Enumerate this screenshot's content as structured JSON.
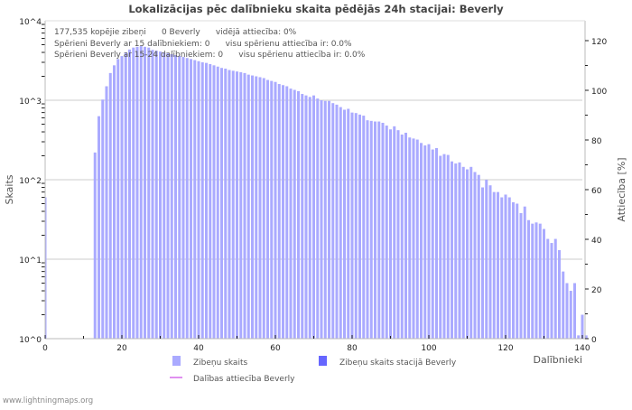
{
  "chart_data": {
    "type": "bar",
    "title": "Lokalizācijas pēc dalībnieku skaita pēdējās 24h stacijai: Beverly",
    "xlabel": "Dalībnieki",
    "ylabel": "Skaits",
    "y2label": "Attiecība [%]",
    "yscale": "log",
    "ylim": [
      1,
      10000
    ],
    "y2lim": [
      0,
      128
    ],
    "xlim": [
      0,
      140
    ],
    "x_ticks": [
      "0",
      "20",
      "40",
      "60",
      "80",
      "100",
      "120",
      "140"
    ],
    "y_ticks": [
      "10^0",
      "10^1",
      "10^2",
      "10^3",
      "10^4"
    ],
    "y2_ticks": [
      "0",
      "20",
      "40",
      "60",
      "80",
      "100",
      "120"
    ],
    "grid": true,
    "annotations": [
      "177,535 kopējie zibeņi      0 Beverly      vidējā attiecība: 0%",
      "Spērieni Beverly ar 15 dalībniekiem: 0      visu spērienu attiecība ir: 0.0%",
      "Spērieni Beverly ar 15-24 dalībniekiem: 0      visu spērienu attiecība ir: 0.0%"
    ],
    "legend": [
      {
        "name": "Zibeņu skaits",
        "color": "#aaaaff",
        "kind": "bar"
      },
      {
        "name": "Zibeņu skaits stacijā Beverly",
        "color": "#6666ff",
        "kind": "bar"
      },
      {
        "name": "Dalības attiecība Beverly",
        "color": "#e090f0",
        "kind": "line"
      }
    ],
    "series": [
      {
        "name": "Zibeņu skaits",
        "x_start": 0,
        "values": [
          60,
          0,
          0,
          0,
          0,
          0,
          0,
          0,
          0,
          0,
          0,
          0,
          0,
          220,
          630,
          1020,
          1500,
          2200,
          2750,
          3300,
          3600,
          4000,
          4350,
          4600,
          4700,
          4800,
          4700,
          4600,
          4300,
          4200,
          4100,
          4000,
          3900,
          3800,
          3700,
          3600,
          3500,
          3400,
          3300,
          3200,
          3100,
          3000,
          2950,
          2850,
          2750,
          2650,
          2550,
          2500,
          2400,
          2350,
          2300,
          2250,
          2200,
          2100,
          2050,
          2000,
          1950,
          1900,
          1800,
          1750,
          1700,
          1600,
          1550,
          1500,
          1400,
          1350,
          1300,
          1200,
          1150,
          1100,
          1150,
          1050,
          1000,
          980,
          980,
          920,
          880,
          820,
          760,
          780,
          700,
          690,
          660,
          640,
          560,
          550,
          540,
          540,
          520,
          480,
          430,
          470,
          420,
          370,
          390,
          340,
          330,
          320,
          290,
          270,
          280,
          240,
          250,
          200,
          210,
          205,
          170,
          160,
          165,
          145,
          135,
          145,
          125,
          115,
          80,
          100,
          85,
          70,
          70,
          60,
          65,
          60,
          52,
          50,
          38,
          46,
          31,
          28,
          29,
          28,
          24,
          18,
          16,
          18,
          13,
          7,
          5,
          4,
          5,
          1.1,
          2,
          1.1
        ]
      },
      {
        "name": "Zibeņu skaits stacijā Beverly",
        "values": []
      },
      {
        "name": "Dalības attiecība Beverly",
        "values": []
      }
    ]
  },
  "footer": "www.lightningmaps.org"
}
